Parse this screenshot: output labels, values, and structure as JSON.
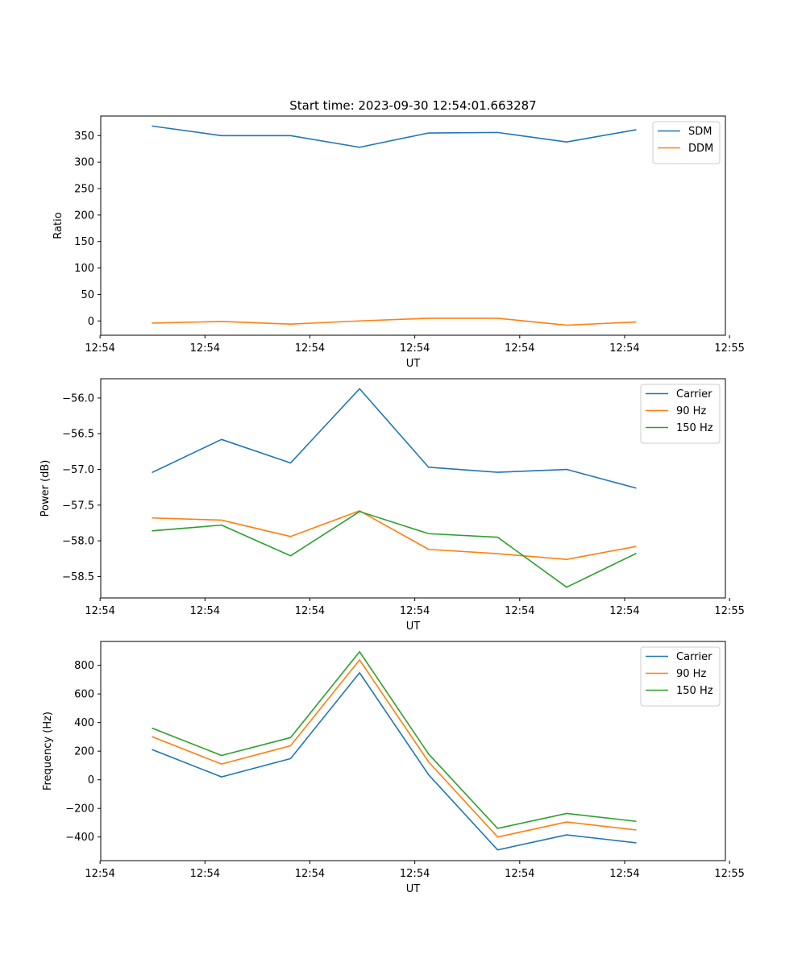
{
  "figure_title": "Start time: 2023-09-30 12:54:01.663287",
  "colors": {
    "c0": "#1f77b4",
    "c1": "#ff7f0e",
    "c2": "#2ca02c"
  },
  "chart_data": [
    {
      "type": "line",
      "title": "Start time: 2023-09-30 12:54:01.663287",
      "xlabel": "UT",
      "ylabel": "Ratio",
      "x": [
        1,
        2,
        3,
        4,
        5,
        6,
        7,
        8
      ],
      "xlim": [
        0.25,
        9.3
      ],
      "xticks": [
        0.24,
        1.76,
        3.28,
        4.8,
        6.32,
        7.84,
        9.36
      ],
      "xticklabels": [
        "12:54",
        "12:54",
        "12:54",
        "12:54",
        "12:54",
        "12:54",
        "12:55"
      ],
      "ylim": [
        -27,
        387
      ],
      "yticks": [
        0,
        50,
        100,
        150,
        200,
        250,
        300,
        350
      ],
      "yticklabels": [
        "0",
        "50",
        "100",
        "150",
        "200",
        "250",
        "300",
        "350"
      ],
      "legend_position": "top-right",
      "series": [
        {
          "name": "SDM",
          "color": "#1f77b4",
          "values": [
            368,
            350,
            350,
            328,
            355,
            356,
            338,
            361
          ]
        },
        {
          "name": "DDM",
          "color": "#ff7f0e",
          "values": [
            -4,
            -1,
            -6,
            0,
            5,
            5,
            -8,
            -2
          ]
        }
      ]
    },
    {
      "type": "line",
      "title": "",
      "xlabel": "UT",
      "ylabel": "Power (dB)",
      "x": [
        1,
        2,
        3,
        4,
        5,
        6,
        7,
        8
      ],
      "xlim": [
        0.25,
        9.3
      ],
      "xticks": [
        0.24,
        1.76,
        3.28,
        4.8,
        6.32,
        7.84,
        9.36
      ],
      "xticklabels": [
        "12:54",
        "12:54",
        "12:54",
        "12:54",
        "12:54",
        "12:54",
        "12:55"
      ],
      "ylim": [
        -58.8,
        -55.73
      ],
      "yticks": [
        -56.0,
        -56.5,
        -57.0,
        -57.5,
        -58.0,
        -58.5
      ],
      "yticklabels": [
        "−56.0",
        "−56.5",
        "−57.0",
        "−57.5",
        "−58.0",
        "−58.5"
      ],
      "legend_position": "top-right",
      "series": [
        {
          "name": "Carrier",
          "color": "#1f77b4",
          "values": [
            -57.04,
            -56.58,
            -56.91,
            -55.87,
            -56.97,
            -57.04,
            -57.0,
            -57.26
          ]
        },
        {
          "name": "90 Hz",
          "color": "#ff7f0e",
          "values": [
            -57.68,
            -57.71,
            -57.94,
            -57.58,
            -58.12,
            -58.18,
            -58.26,
            -58.08
          ]
        },
        {
          "name": "150 Hz",
          "color": "#2ca02c",
          "values": [
            -57.86,
            -57.78,
            -58.21,
            -57.59,
            -57.9,
            -57.95,
            -58.65,
            -58.18
          ]
        }
      ]
    },
    {
      "type": "line",
      "title": "",
      "xlabel": "UT",
      "ylabel": "Frequency (Hz)",
      "x": [
        1,
        2,
        3,
        4,
        5,
        6,
        7,
        8
      ],
      "xlim": [
        0.25,
        9.3
      ],
      "xticks": [
        0.24,
        1.76,
        3.28,
        4.8,
        6.32,
        7.84,
        9.36
      ],
      "xticklabels": [
        "12:54",
        "12:54",
        "12:54",
        "12:54",
        "12:54",
        "12:54",
        "12:55"
      ],
      "ylim": [
        -565,
        967
      ],
      "yticks": [
        -400,
        -200,
        0,
        200,
        400,
        600,
        800
      ],
      "yticklabels": [
        "−400",
        "−200",
        "0",
        "200",
        "400",
        "600",
        "800"
      ],
      "legend_position": "top-right",
      "series": [
        {
          "name": "Carrier",
          "color": "#1f77b4",
          "values": [
            210,
            20,
            148,
            748,
            35,
            -490,
            -385,
            -440
          ]
        },
        {
          "name": "90 Hz",
          "color": "#ff7f0e",
          "values": [
            300,
            110,
            238,
            838,
            125,
            -400,
            -295,
            -350
          ]
        },
        {
          "name": "150 Hz",
          "color": "#2ca02c",
          "values": [
            360,
            170,
            295,
            895,
            180,
            -340,
            -235,
            -290
          ]
        }
      ]
    }
  ]
}
